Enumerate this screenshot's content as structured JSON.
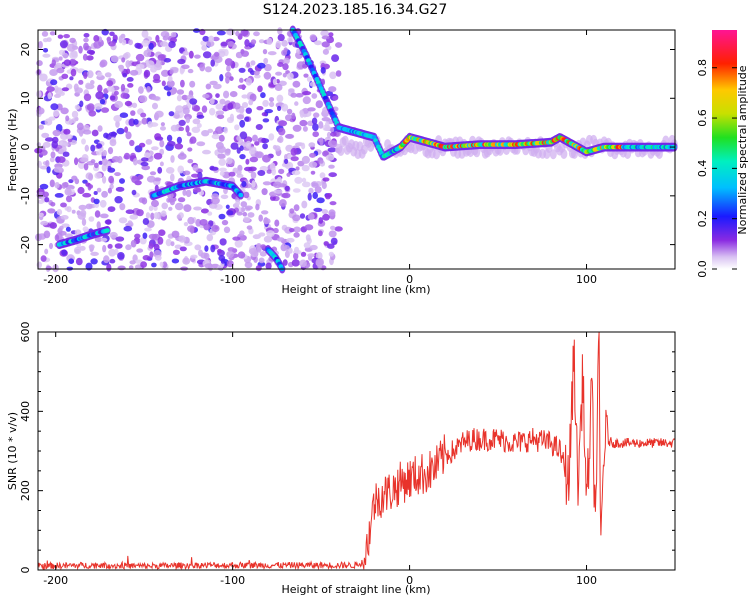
{
  "title": "S124.2023.185.16.34.G27",
  "colors": {
    "snr_line": "#e8332b",
    "background": "#ffffff",
    "axis": "#000000"
  },
  "chart_data": [
    {
      "type": "heatmap",
      "xlabel": "Height of straight line (km)",
      "ylabel": "Frequency (Hz)",
      "xlim": [
        -210,
        150
      ],
      "ylim": [
        -25,
        24
      ],
      "xticks": [
        -200,
        -100,
        0,
        100
      ],
      "yticks": [
        -20,
        -10,
        0,
        10,
        20
      ],
      "colorbar": {
        "label": "Normalized spectral amplitude",
        "range": [
          0.0,
          0.95
        ],
        "ticks": [
          0.0,
          0.2,
          0.4,
          0.6,
          0.8
        ],
        "tick_labels": [
          "0.0",
          "0.2",
          "0.4",
          "0.6",
          "0.8"
        ],
        "colormap": "white-purple-blue-cyan-green-yellow-red-magenta"
      },
      "noise_region_x": [
        -210,
        -40
      ],
      "ridge_segments": [
        {
          "x": [
            -198,
            -188,
            -180,
            -170
          ],
          "y": [
            -20,
            -19,
            -18,
            -17
          ]
        },
        {
          "x": [
            -145,
            -130,
            -115,
            -100,
            -95
          ],
          "y": [
            -10,
            -8,
            -7,
            -8,
            -10
          ]
        },
        {
          "x": [
            -66,
            -60,
            -55,
            -50,
            -45,
            -40
          ],
          "y": [
            24,
            20,
            16,
            12,
            8,
            4
          ]
        },
        {
          "x": [
            -40,
            -30,
            -20,
            -15,
            -10,
            -5,
            0,
            10,
            20,
            40,
            60,
            80,
            85,
            90,
            95,
            100,
            110,
            150
          ],
          "y": [
            4,
            3,
            2,
            -2,
            -1,
            0,
            2,
            1,
            0,
            0.5,
            0.5,
            1,
            2,
            1,
            0,
            -1,
            0,
            0
          ]
        },
        {
          "x": [
            -80,
            -75,
            -72
          ],
          "y": [
            -21,
            -23,
            -25
          ]
        }
      ]
    },
    {
      "type": "line",
      "xlabel": "Height of straight line (km)",
      "ylabel": "SNR (10 * v/v)",
      "xlim": [
        -210,
        150
      ],
      "ylim": [
        0,
        600
      ],
      "xticks": [
        -200,
        -100,
        0,
        100
      ],
      "yticks": [
        0,
        200,
        400,
        600
      ],
      "series": [
        {
          "color": "#e8332b",
          "x": [
            -210,
            -180,
            -150,
            -120,
            -90,
            -60,
            -40,
            -30,
            -26,
            -24,
            -20,
            -15,
            -10,
            -5,
            0,
            5,
            10,
            15,
            20,
            25,
            30,
            35,
            40,
            50,
            60,
            70,
            80,
            85,
            90,
            93,
            95,
            98,
            100,
            103,
            105,
            107,
            108,
            110,
            115,
            120,
            130,
            140,
            150
          ],
          "y": [
            10,
            12,
            10,
            12,
            12,
            12,
            12,
            12,
            20,
            60,
            170,
            190,
            200,
            220,
            230,
            240,
            245,
            260,
            290,
            300,
            320,
            330,
            330,
            330,
            320,
            330,
            320,
            300,
            220,
            560,
            200,
            500,
            150,
            450,
            120,
            580,
            50,
            330,
            320,
            320,
            320,
            320,
            320
          ]
        }
      ]
    }
  ]
}
